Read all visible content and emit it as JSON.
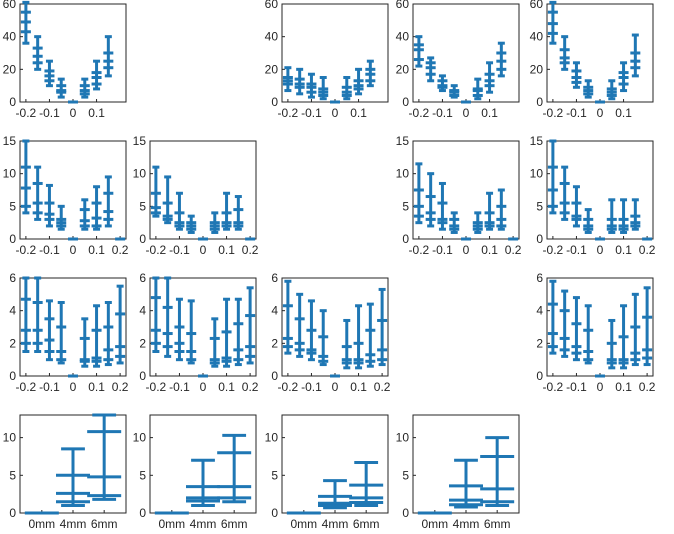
{
  "figure": {
    "description_label": "Boxplot grid"
  },
  "chart_data": [
    {
      "row": 0,
      "col": 0,
      "type": "boxplot",
      "ylim": [
        0,
        60
      ],
      "yticks": [
        "0",
        "20",
        "40",
        "60"
      ],
      "xticks": [
        "-0.2",
        "-0.1",
        "0",
        "0.1"
      ],
      "categories": [
        -0.2,
        -0.15,
        -0.1,
        -0.05,
        0,
        0.05,
        0.1,
        0.15
      ],
      "boxes": [
        [
          36,
          43,
          49,
          55,
          61
        ],
        [
          20,
          24,
          28,
          33,
          40
        ],
        [
          10,
          13,
          16,
          19,
          25
        ],
        [
          3,
          6,
          7,
          10,
          14
        ],
        [
          0,
          0,
          0,
          0,
          0
        ],
        [
          3,
          5,
          7,
          10,
          14
        ],
        [
          8,
          11,
          15,
          18,
          25
        ],
        [
          16,
          21,
          25,
          30,
          40
        ]
      ]
    },
    {
      "row": 0,
      "col": 2,
      "type": "boxplot",
      "ylim": [
        0,
        60
      ],
      "yticks": [
        "0",
        "20",
        "40",
        "60"
      ],
      "xticks": [
        "-0.2",
        "-0.1",
        "0",
        "0.1"
      ],
      "categories": [
        -0.2,
        -0.15,
        -0.1,
        -0.05,
        0,
        0.05,
        0.1,
        0.15
      ],
      "boxes": [
        [
          7,
          11,
          13,
          15,
          21
        ],
        [
          5,
          9,
          11,
          14,
          20
        ],
        [
          3,
          6,
          9,
          11,
          17
        ],
        [
          2,
          4,
          6,
          8,
          15
        ],
        [
          0,
          0,
          0,
          0,
          0
        ],
        [
          2,
          4,
          6,
          9,
          15
        ],
        [
          5,
          8,
          10,
          13,
          20
        ],
        [
          10,
          13,
          17,
          20,
          25
        ]
      ]
    },
    {
      "row": 0,
      "col": 3,
      "type": "boxplot",
      "ylim": [
        0,
        60
      ],
      "yticks": [
        "0",
        "20",
        "40",
        "60"
      ],
      "xticks": [
        "-0.2",
        "-0.1",
        "0",
        "0.1"
      ],
      "categories": [
        -0.2,
        -0.15,
        -0.1,
        -0.05,
        0,
        0.05,
        0.1,
        0.15
      ],
      "boxes": [
        [
          22,
          26,
          32,
          35,
          40
        ],
        [
          13,
          17,
          21,
          24,
          27
        ],
        [
          7,
          9,
          10,
          13,
          16
        ],
        [
          3,
          4,
          6,
          7,
          10
        ],
        [
          0,
          0,
          0,
          0,
          0
        ],
        [
          2,
          4,
          7,
          8,
          14
        ],
        [
          6,
          10,
          13,
          17,
          24
        ],
        [
          16,
          20,
          25,
          30,
          36
        ]
      ]
    },
    {
      "row": 0,
      "col": 4,
      "type": "boxplot",
      "ylim": [
        0,
        60
      ],
      "yticks": [
        "0",
        "20",
        "40",
        "60"
      ],
      "xticks": [
        "-0.2",
        "-0.1",
        "0",
        "0.1"
      ],
      "categories": [
        -0.2,
        -0.15,
        -0.1,
        -0.05,
        0,
        0.05,
        0.1,
        0.15
      ],
      "boxes": [
        [
          36,
          42,
          48,
          55,
          61
        ],
        [
          20,
          24,
          27,
          32,
          40
        ],
        [
          9,
          12,
          15,
          19,
          24
        ],
        [
          3,
          5,
          7,
          9,
          13
        ],
        [
          0,
          0,
          0,
          0,
          0
        ],
        [
          2,
          4,
          6,
          8,
          13
        ],
        [
          7,
          11,
          15,
          18,
          24
        ],
        [
          16,
          21,
          25,
          30,
          41
        ]
      ]
    },
    {
      "row": 1,
      "col": 0,
      "type": "boxplot",
      "ylim": [
        0,
        15
      ],
      "yticks": [
        "0",
        "5",
        "10",
        "15"
      ],
      "xticks": [
        "-0.2",
        "-0.1",
        "0",
        "0.1",
        "0.2"
      ],
      "categories": [
        -0.2,
        -0.15,
        -0.1,
        -0.05,
        0,
        0.05,
        0.1,
        0.15,
        0.2
      ],
      "boxes": [
        [
          4,
          5,
          7.8,
          11,
          15
        ],
        [
          3,
          4,
          5.5,
          8.5,
          11
        ],
        [
          2,
          3,
          3.8,
          5.5,
          8.2
        ],
        [
          1.5,
          2,
          2.5,
          3,
          5
        ],
        [
          0,
          0,
          0,
          0,
          0
        ],
        [
          1.5,
          2,
          2.8,
          4.5,
          6
        ],
        [
          1.5,
          2,
          3.2,
          5.5,
          8
        ],
        [
          2,
          3,
          4.2,
          7,
          9.5
        ],
        [
          0,
          0,
          0,
          0,
          0
        ]
      ]
    },
    {
      "row": 1,
      "col": 1,
      "type": "boxplot",
      "ylim": [
        0,
        15
      ],
      "yticks": [
        "0",
        "5",
        "10",
        "15"
      ],
      "xticks": [
        "-0.2",
        "-0.1",
        "0",
        "0.1",
        "0.2"
      ],
      "categories": [
        -0.2,
        -0.15,
        -0.1,
        -0.05,
        0,
        0.05,
        0.1,
        0.15,
        0.2
      ],
      "boxes": [
        [
          3.5,
          4,
          4.8,
          7,
          11
        ],
        [
          2.5,
          3,
          3.5,
          5.5,
          9.5
        ],
        [
          1.5,
          2,
          2.5,
          4,
          7
        ],
        [
          1,
          1.5,
          2,
          2.5,
          3.5
        ],
        [
          0,
          0,
          0,
          0,
          0
        ],
        [
          1,
          1.5,
          2,
          2.5,
          4
        ],
        [
          1.5,
          2,
          2.5,
          4,
          7
        ],
        [
          1.5,
          2,
          2.5,
          4.5,
          6.5
        ],
        [
          0,
          0,
          0,
          0,
          0
        ]
      ]
    },
    {
      "row": 1,
      "col": 3,
      "type": "boxplot",
      "ylim": [
        0,
        15
      ],
      "yticks": [
        "0",
        "5",
        "10",
        "15"
      ],
      "xticks": [
        "-0.2",
        "-0.1",
        "0",
        "0.1",
        "0.2"
      ],
      "categories": [
        -0.2,
        -0.15,
        -0.1,
        -0.05,
        0,
        0.05,
        0.1,
        0.15,
        0.2
      ],
      "boxes": [
        [
          2.5,
          3.5,
          5,
          7.5,
          11.5
        ],
        [
          2,
          3,
          4,
          6.5,
          10
        ],
        [
          1.5,
          2.5,
          3,
          5.5,
          8.5
        ],
        [
          1,
          1.5,
          2,
          3,
          4
        ],
        [
          0,
          0,
          0,
          0,
          0
        ],
        [
          1,
          1.5,
          2,
          2.5,
          4
        ],
        [
          1.5,
          2,
          2.5,
          4,
          7
        ],
        [
          1.5,
          2,
          3,
          5,
          7.5
        ],
        [
          0,
          0,
          0,
          0,
          0
        ]
      ]
    },
    {
      "row": 1,
      "col": 4,
      "type": "boxplot",
      "ylim": [
        0,
        15
      ],
      "yticks": [
        "0",
        "5",
        "10",
        "15"
      ],
      "xticks": [
        "-0.2",
        "-0.1",
        "0",
        "0.1",
        "0.2"
      ],
      "categories": [
        -0.2,
        -0.15,
        -0.1,
        -0.05,
        0,
        0.05,
        0.1,
        0.15,
        0.2
      ],
      "boxes": [
        [
          4,
          5,
          7.5,
          11,
          15
        ],
        [
          3,
          4,
          5.5,
          8.5,
          11
        ],
        [
          2,
          3,
          3.5,
          5.5,
          8
        ],
        [
          1,
          1.5,
          2,
          3,
          4.5
        ],
        [
          0,
          0,
          0,
          0,
          0
        ],
        [
          1,
          1.5,
          2,
          3,
          6
        ],
        [
          1,
          1.5,
          2,
          3,
          6
        ],
        [
          1.5,
          2,
          2.5,
          3.5,
          6
        ],
        [
          0,
          0,
          0,
          0,
          0
        ]
      ]
    },
    {
      "row": 2,
      "col": 0,
      "type": "boxplot",
      "ylim": [
        0,
        6
      ],
      "yticks": [
        "0",
        "2",
        "4",
        "6"
      ],
      "xticks": [
        "-0.2",
        "-0.1",
        "0",
        "0.1",
        "0.2"
      ],
      "categories": [
        -0.2,
        -0.15,
        -0.1,
        -0.05,
        0,
        0.05,
        0.1,
        0.15,
        0.2
      ],
      "boxes": [
        [
          1.5,
          2,
          2.8,
          4.7,
          6
        ],
        [
          1.5,
          2,
          2.8,
          4.5,
          6
        ],
        [
          1,
          1.5,
          2.2,
          3.5,
          4.6
        ],
        [
          0.8,
          1,
          1.5,
          3,
          4.5
        ],
        [
          0,
          0,
          0,
          0,
          0
        ],
        [
          0.6,
          0.9,
          1,
          2.3,
          3.5
        ],
        [
          0.6,
          0.9,
          1.1,
          2.8,
          4.3
        ],
        [
          0.7,
          1,
          1.6,
          3,
          4.5
        ],
        [
          0.8,
          1.2,
          1.8,
          3.8,
          5.5
        ]
      ]
    },
    {
      "row": 2,
      "col": 1,
      "type": "boxplot",
      "ylim": [
        0,
        6
      ],
      "yticks": [
        "0",
        "2",
        "4",
        "6"
      ],
      "xticks": [
        "-0.2",
        "-0.1",
        "0",
        "0.1",
        "0.2"
      ],
      "categories": [
        -0.2,
        -0.15,
        -0.1,
        -0.05,
        0,
        0.05,
        0.1,
        0.15,
        0.2
      ],
      "boxes": [
        [
          1.5,
          2,
          2.8,
          4.8,
          6
        ],
        [
          1.2,
          1.8,
          2.6,
          4.2,
          6
        ],
        [
          1,
          1.5,
          2,
          3,
          4.7
        ],
        [
          0.8,
          1,
          1.5,
          2.6,
          4.6
        ],
        [
          0,
          0,
          0,
          0,
          0
        ],
        [
          0.6,
          0.8,
          1,
          2.3,
          3.5
        ],
        [
          0.6,
          0.9,
          1.1,
          2.7,
          4.7
        ],
        [
          0.7,
          1,
          1.6,
          3.2,
          4.7
        ],
        [
          0.8,
          1.2,
          1.8,
          3.7,
          5.4
        ]
      ]
    },
    {
      "row": 2,
      "col": 2,
      "type": "boxplot",
      "ylim": [
        0,
        6
      ],
      "yticks": [
        "0",
        "2",
        "4",
        "6"
      ],
      "xticks": [
        "-0.2",
        "-0.1",
        "0",
        "0.1",
        "0.2"
      ],
      "categories": [
        -0.2,
        -0.15,
        -0.1,
        -0.05,
        0,
        0.05,
        0.1,
        0.15,
        0.2
      ],
      "boxes": [
        [
          1.4,
          1.8,
          2.3,
          4.3,
          5.8
        ],
        [
          1.2,
          1.6,
          2,
          3.5,
          5
        ],
        [
          1,
          1.4,
          1.6,
          2.8,
          4.6
        ],
        [
          0.7,
          0.9,
          1.2,
          2.4,
          4
        ],
        [
          0,
          0,
          0,
          0,
          0
        ],
        [
          0.5,
          0.8,
          1,
          1.8,
          3.4
        ],
        [
          0.5,
          0.8,
          1,
          2,
          4.3
        ],
        [
          0.6,
          0.9,
          1.3,
          2.8,
          4.4
        ],
        [
          0.7,
          1,
          1.6,
          3.4,
          5.3
        ]
      ]
    },
    {
      "row": 2,
      "col": 4,
      "type": "boxplot",
      "ylim": [
        0,
        6
      ],
      "yticks": [
        "0",
        "2",
        "4",
        "6"
      ],
      "xticks": [
        "-0.2",
        "-0.1",
        "0",
        "0.1",
        "0.2"
      ],
      "categories": [
        -0.2,
        -0.15,
        -0.1,
        -0.05,
        0,
        0.05,
        0.1,
        0.15,
        0.2
      ],
      "boxes": [
        [
          1.4,
          1.8,
          2.6,
          4.4,
          5.8
        ],
        [
          1.2,
          1.6,
          2.3,
          4,
          5.2
        ],
        [
          1,
          1.4,
          1.8,
          3.2,
          4.8
        ],
        [
          0.8,
          1,
          1.5,
          2.8,
          4.3
        ],
        [
          0,
          0,
          0,
          0,
          0
        ],
        [
          0.5,
          0.8,
          1,
          2,
          3.4
        ],
        [
          0.5,
          0.8,
          1,
          2.4,
          4.3
        ],
        [
          0.7,
          1,
          1.4,
          3,
          5
        ],
        [
          0.7,
          1.1,
          1.6,
          3.6,
          5.4
        ]
      ]
    },
    {
      "row": 3,
      "col": 0,
      "type": "boxplot",
      "ylim": [
        0,
        13
      ],
      "yticks": [
        "0",
        "5",
        "10"
      ],
      "xticks": [
        "0mm",
        "4mm",
        "6mm"
      ],
      "categories": [
        "0mm",
        "4mm",
        "6mm"
      ],
      "boxes": [
        [
          0,
          0,
          0,
          0,
          0
        ],
        [
          1,
          1.5,
          2.6,
          5,
          8.5
        ],
        [
          1.8,
          2.3,
          4.8,
          10.8,
          13
        ]
      ]
    },
    {
      "row": 3,
      "col": 1,
      "type": "boxplot",
      "ylim": [
        0,
        13
      ],
      "yticks": [
        "0",
        "5",
        "10"
      ],
      "xticks": [
        "0mm",
        "4mm",
        "6mm"
      ],
      "categories": [
        "0mm",
        "4mm",
        "6mm"
      ],
      "boxes": [
        [
          0,
          0,
          0,
          0,
          0
        ],
        [
          1,
          1.6,
          2,
          3.5,
          7
        ],
        [
          1.5,
          2,
          3.5,
          8,
          10.3
        ]
      ]
    },
    {
      "row": 3,
      "col": 2,
      "type": "boxplot",
      "ylim": [
        0,
        13
      ],
      "yticks": [
        "0",
        "5",
        "10"
      ],
      "xticks": [
        "0mm",
        "4mm",
        "6mm"
      ],
      "categories": [
        "0mm",
        "4mm",
        "6mm"
      ],
      "boxes": [
        [
          0,
          0,
          0,
          0,
          0
        ],
        [
          0.7,
          1,
          1.3,
          2.2,
          4.3
        ],
        [
          1,
          1.4,
          2,
          3.7,
          6.7
        ]
      ]
    },
    {
      "row": 3,
      "col": 3,
      "type": "boxplot",
      "ylim": [
        0,
        13
      ],
      "yticks": [
        "0",
        "5",
        "10"
      ],
      "xticks": [
        "0mm",
        "4mm",
        "6mm"
      ],
      "categories": [
        "0mm",
        "4mm",
        "6mm"
      ],
      "boxes": [
        [
          0,
          0,
          0,
          0,
          0
        ],
        [
          0.8,
          1.1,
          1.7,
          3.6,
          7
        ],
        [
          1,
          1.5,
          3.2,
          7.5,
          10
        ]
      ]
    }
  ]
}
